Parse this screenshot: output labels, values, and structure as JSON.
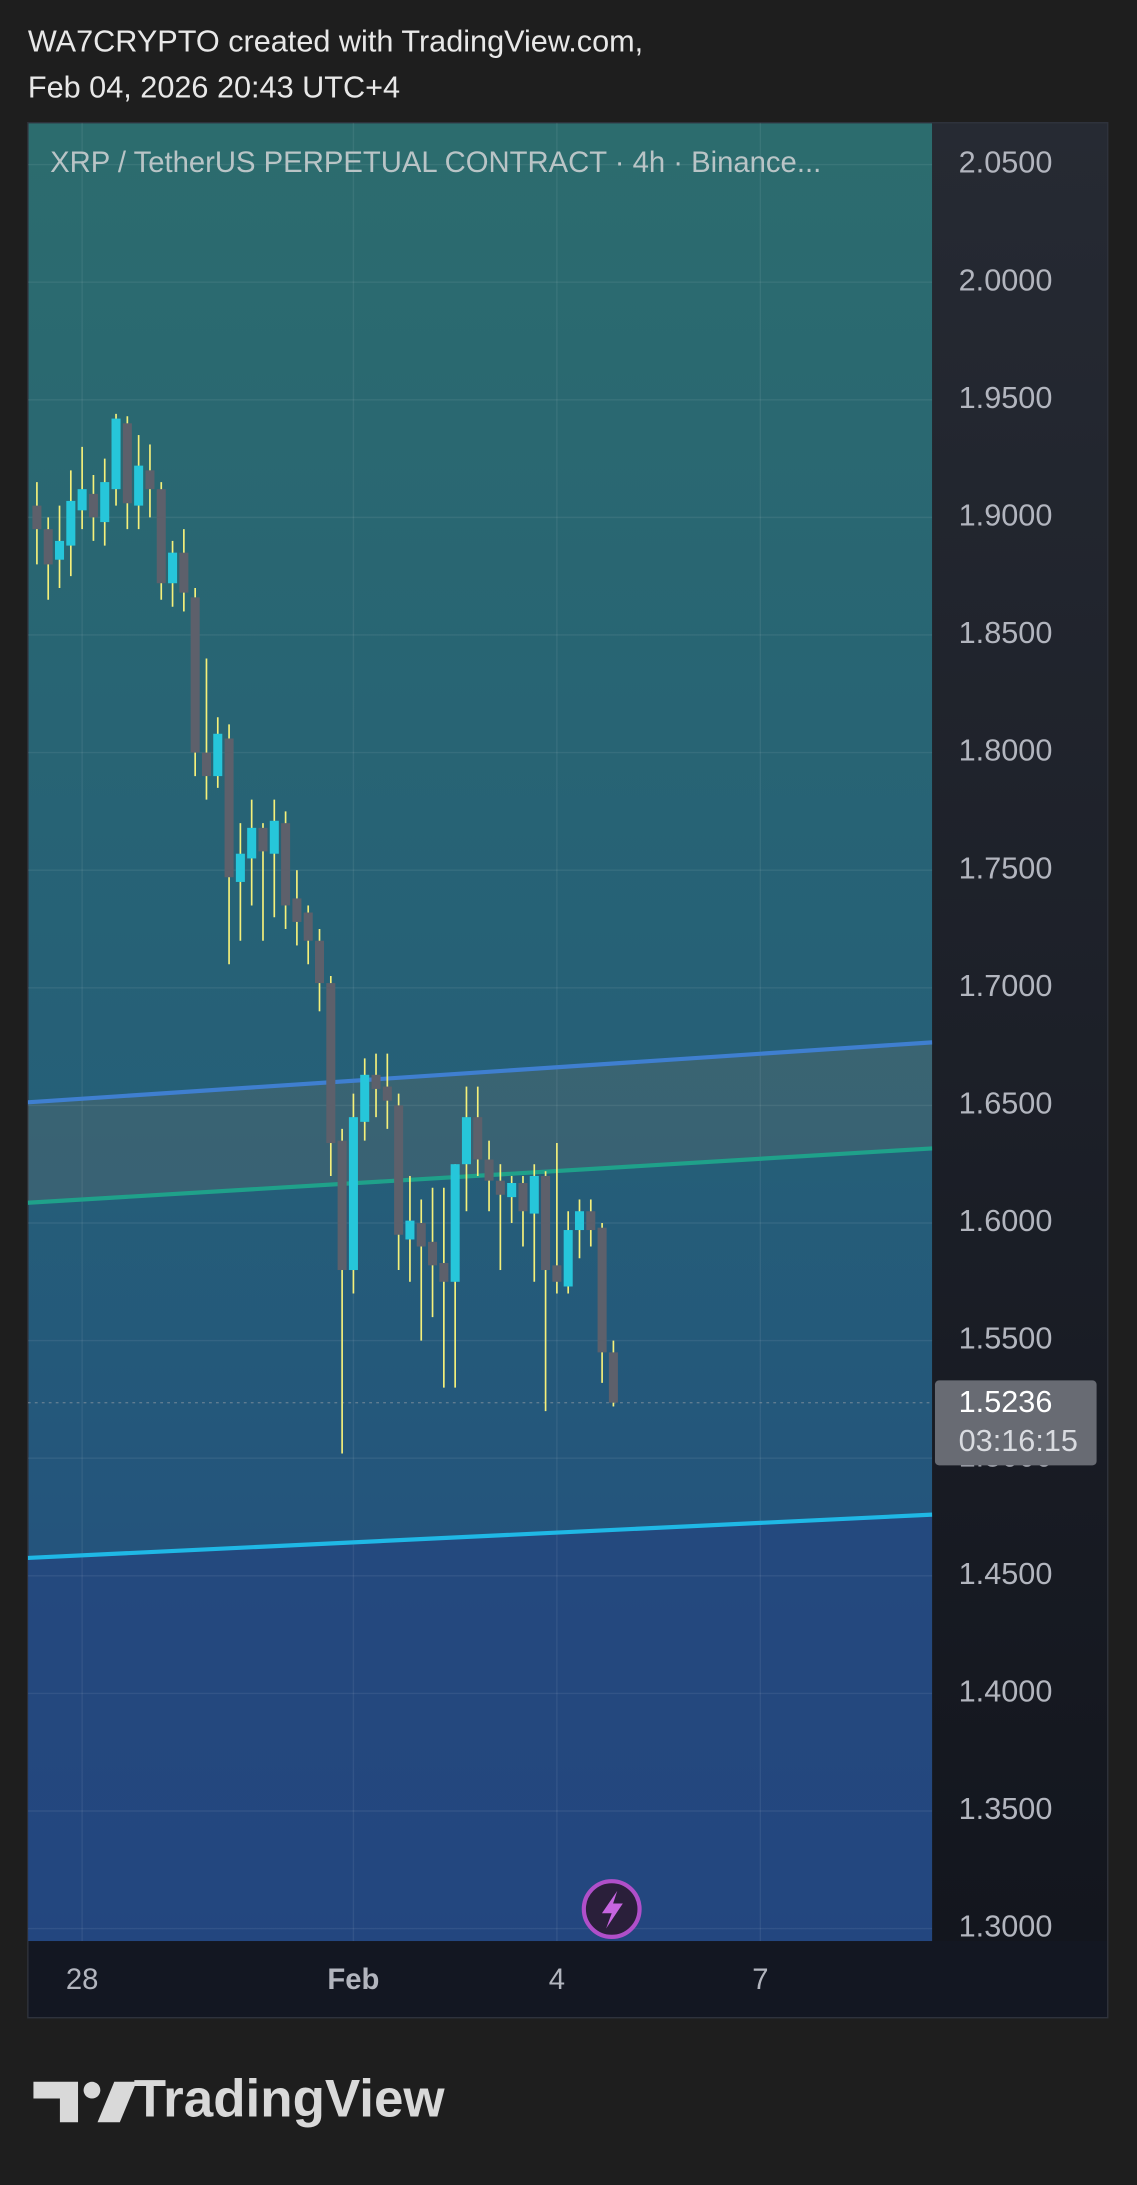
{
  "header": {
    "author_line": "WA7CRYPTO created with TradingView.com,",
    "date_line": "Feb 04, 2026 20:43 UTC+4"
  },
  "chart_data": {
    "type": "candlestick",
    "title": "XRP / TetherUS PERPETUAL CONTRACT · 4h · Binance...",
    "categories": [
      null,
      null,
      null,
      null,
      null,
      null,
      null,
      null,
      null,
      null,
      null,
      null,
      null,
      null,
      null,
      null,
      null,
      null,
      null,
      null,
      null,
      null,
      null,
      null,
      null,
      null,
      null,
      null,
      null,
      null,
      null,
      null,
      null,
      null,
      null,
      null,
      null,
      null,
      null,
      null,
      null,
      null,
      null,
      null,
      null,
      null,
      null,
      null,
      null,
      null,
      null,
      null
    ],
    "open": [
      1.905,
      1.895,
      1.882,
      1.888,
      1.903,
      1.91,
      1.898,
      1.912,
      1.94,
      1.905,
      1.92,
      1.912,
      1.872,
      1.885,
      1.866,
      1.8,
      1.79,
      1.806,
      1.745,
      1.755,
      1.768,
      1.757,
      1.77,
      1.738,
      1.732,
      1.72,
      1.702,
      1.635,
      1.58,
      1.643,
      1.663,
      1.658,
      1.65,
      1.593,
      1.6,
      1.592,
      1.583,
      1.575,
      1.625,
      1.645,
      1.627,
      1.618,
      1.611,
      1.617,
      1.604,
      1.62,
      1.582,
      1.573,
      1.597,
      1.605,
      1.598,
      1.545
    ],
    "high": [
      1.915,
      1.9,
      1.905,
      1.92,
      1.93,
      1.918,
      1.925,
      1.944,
      1.943,
      1.935,
      1.931,
      1.915,
      1.89,
      1.895,
      1.87,
      1.84,
      1.815,
      1.812,
      1.77,
      1.78,
      1.77,
      1.78,
      1.775,
      1.75,
      1.735,
      1.725,
      1.705,
      1.64,
      1.655,
      1.67,
      1.672,
      1.672,
      1.655,
      1.62,
      1.61,
      1.615,
      1.615,
      1.625,
      1.658,
      1.658,
      1.635,
      1.625,
      1.62,
      1.62,
      1.625,
      1.622,
      1.634,
      1.605,
      1.61,
      1.61,
      1.6,
      1.55
    ],
    "low": [
      1.88,
      1.865,
      1.87,
      1.875,
      1.895,
      1.89,
      1.888,
      1.905,
      1.895,
      1.895,
      1.9,
      1.865,
      1.862,
      1.86,
      1.79,
      1.78,
      1.785,
      1.71,
      1.72,
      1.735,
      1.72,
      1.73,
      1.725,
      1.718,
      1.71,
      1.69,
      1.62,
      1.502,
      1.57,
      1.635,
      1.645,
      1.64,
      1.58,
      1.575,
      1.55,
      1.56,
      1.53,
      1.53,
      1.605,
      1.62,
      1.605,
      1.58,
      1.6,
      1.59,
      1.575,
      1.52,
      1.57,
      1.57,
      1.585,
      1.59,
      1.532,
      1.522
    ],
    "close": [
      1.895,
      1.88,
      1.89,
      1.907,
      1.912,
      1.9,
      1.915,
      1.942,
      1.906,
      1.922,
      1.912,
      1.872,
      1.885,
      1.868,
      1.8,
      1.79,
      1.808,
      1.747,
      1.757,
      1.768,
      1.758,
      1.771,
      1.735,
      1.728,
      1.72,
      1.702,
      1.634,
      1.58,
      1.645,
      1.663,
      1.657,
      1.652,
      1.595,
      1.601,
      1.59,
      1.582,
      1.575,
      1.625,
      1.645,
      1.627,
      1.618,
      1.612,
      1.617,
      1.605,
      1.62,
      1.58,
      1.575,
      1.597,
      1.605,
      1.597,
      1.545,
      1.5236
    ],
    "up_color": "#26c6da",
    "down_color": "#5d606b",
    "wick_color": "#f5f07a",
    "xlim": [
      -0.8,
      79.2
    ],
    "xticks": [
      {
        "value": 4,
        "label": "28"
      },
      {
        "value": 28,
        "label": "Feb"
      },
      {
        "value": 46,
        "label": "4"
      },
      {
        "value": 64,
        "label": "7"
      }
    ],
    "ylim": [
      1.2947,
      2.0678
    ],
    "yticks": [
      {
        "value": 2.05,
        "label": "2.0500"
      },
      {
        "value": 2.0,
        "label": "2.0000"
      },
      {
        "value": 1.95,
        "label": "1.9500"
      },
      {
        "value": 1.9,
        "label": "1.9000"
      },
      {
        "value": 1.85,
        "label": "1.8500"
      },
      {
        "value": 1.8,
        "label": "1.8000"
      },
      {
        "value": 1.75,
        "label": "1.7500"
      },
      {
        "value": 1.7,
        "label": "1.7000"
      },
      {
        "value": 1.65,
        "label": "1.6500"
      },
      {
        "value": 1.6,
        "label": "1.6000"
      },
      {
        "value": 1.55,
        "label": "1.5500"
      },
      {
        "value": 1.5,
        "label": "1.5000"
      },
      {
        "value": 1.45,
        "label": "1.4500"
      },
      {
        "value": 1.4,
        "label": "1.4000"
      },
      {
        "value": 1.35,
        "label": "1.3500"
      },
      {
        "value": 1.3,
        "label": "1.3000"
      }
    ],
    "grid": true,
    "trend_lines": [
      {
        "color": "#3f7fd0",
        "start": [
          -0.8,
          1.6513
        ],
        "end": [
          79.2,
          1.6768
        ]
      },
      {
        "color": "#1fa18a",
        "start": [
          -0.8,
          1.6086
        ],
        "end": [
          79.2,
          1.6317
        ]
      },
      {
        "color": "#1fb8e6",
        "start": [
          -0.8,
          1.4576
        ],
        "end": [
          79.2,
          1.476
        ]
      }
    ],
    "last_price": 1.5236,
    "countdown": "03:16:15"
  },
  "footer": {
    "brand": "TradingView"
  }
}
